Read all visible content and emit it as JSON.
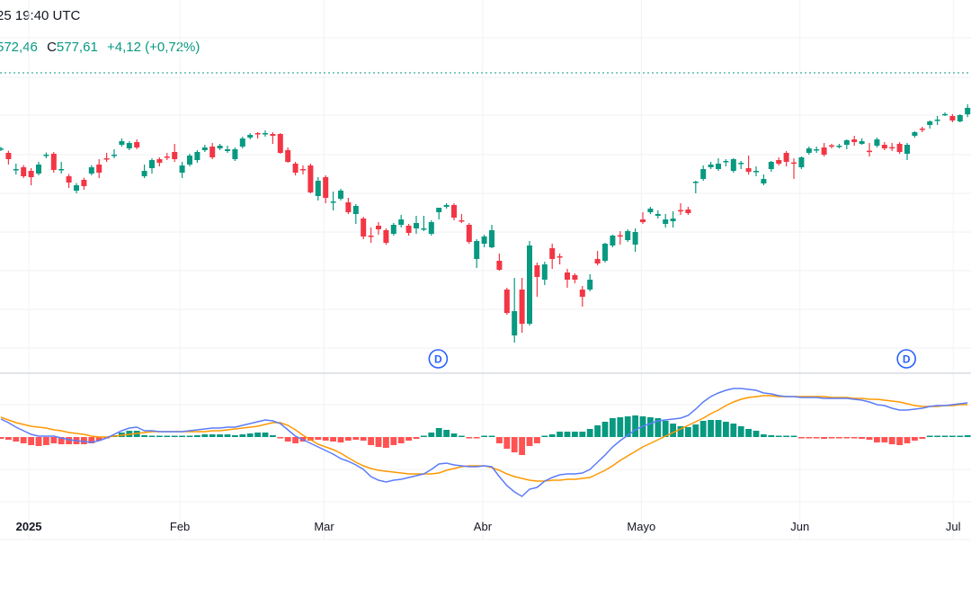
{
  "header": {
    "datetime": "25 19:40 UTC",
    "low_value": "572,46",
    "close_label": "C",
    "close_value": "577,61",
    "change": "+4,12 (+0,72%)"
  },
  "colors": {
    "up": "#089981",
    "down": "#F23645",
    "hist_up": "#089981",
    "hist_down": "#FF5252",
    "macd_line": "#5B7CFA",
    "signal_line": "#FF9800",
    "dividend_marker": "#2962FF",
    "last_price_line": "#089981"
  },
  "dividend_markers": [
    {
      "label": "D"
    },
    {
      "label": "D"
    }
  ],
  "chart_data": [
    {
      "type": "candlestick",
      "title": "",
      "x_ticks": [
        "2025",
        "Feb",
        "Mar",
        "Abr",
        "Mayo",
        "Jun",
        "Jul"
      ],
      "grid": true,
      "last_close": 577.61,
      "candles_ohlc": [
        [
          554.6,
          556.0,
          553.6,
          555.1
        ],
        [
          552.6,
          553.8,
          546.1,
          549.1
        ],
        [
          543.4,
          546.6,
          540.6,
          543.6
        ],
        [
          544.6,
          545.8,
          538.6,
          539.6
        ],
        [
          542.6,
          544.1,
          534.6,
          539.1
        ],
        [
          541.1,
          547.6,
          540.1,
          546.1
        ],
        [
          551.1,
          552.8,
          549.6,
          551.6
        ],
        [
          552.1,
          553.1,
          541.6,
          543.1
        ],
        [
          543.1,
          547.6,
          541.1,
          543.6
        ],
        [
          539.6,
          540.8,
          533.1,
          536.1
        ],
        [
          531.6,
          535.8,
          530.1,
          534.6
        ],
        [
          537.6,
          538.8,
          532.1,
          534.1
        ],
        [
          541.1,
          545.8,
          540.1,
          544.6
        ],
        [
          546.1,
          549.1,
          538.6,
          541.6
        ],
        [
          549.6,
          552.6,
          547.6,
          549.1
        ],
        [
          551.1,
          554.6,
          549.6,
          551.6
        ],
        [
          557.1,
          560.6,
          556.1,
          559.1
        ],
        [
          555.1,
          559.1,
          554.1,
          558.1
        ],
        [
          558.6,
          560.1,
          554.6,
          555.6
        ],
        [
          539.6,
          546.1,
          538.6,
          542.6
        ],
        [
          544.1,
          549.6,
          541.1,
          548.6
        ],
        [
          549.1,
          550.1,
          545.1,
          547.1
        ],
        [
          550.6,
          552.6,
          548.6,
          550.1
        ],
        [
          553.1,
          557.6,
          547.6,
          549.1
        ],
        [
          541.6,
          547.6,
          538.6,
          545.6
        ],
        [
          546.1,
          552.1,
          545.1,
          551.1
        ],
        [
          548.6,
          554.1,
          547.1,
          553.1
        ],
        [
          554.1,
          557.1,
          553.1,
          555.6
        ],
        [
          556.1,
          558.1,
          549.1,
          550.1
        ],
        [
          555.1,
          557.6,
          554.1,
          556.6
        ],
        [
          553.6,
          556.6,
          552.6,
          554.6
        ],
        [
          549.1,
          555.6,
          548.1,
          554.6
        ],
        [
          556.1,
          561.6,
          555.1,
          560.6
        ],
        [
          561.1,
          563.6,
          560.1,
          562.6
        ],
        [
          563.6,
          564.1,
          560.6,
          563.1
        ],
        [
          563.1,
          565.1,
          561.6,
          563.6
        ],
        [
          563.1,
          564.1,
          557.6,
          562.1
        ],
        [
          563.1,
          563.6,
          552.1,
          552.6
        ],
        [
          554.1,
          555.6,
          547.1,
          547.6
        ],
        [
          546.6,
          547.6,
          540.1,
          541.6
        ],
        [
          543.6,
          545.6,
          540.6,
          543.1
        ],
        [
          545.6,
          546.6,
          530.1,
          530.6
        ],
        [
          528.6,
          539.1,
          526.1,
          537.1
        ],
        [
          539.1,
          540.1,
          524.6,
          527.6
        ],
        [
          525.1,
          531.1,
          520.6,
          525.6
        ],
        [
          527.1,
          532.6,
          526.1,
          531.6
        ],
        [
          525.1,
          527.6,
          518.6,
          519.6
        ],
        [
          518.6,
          524.1,
          513.1,
          523.1
        ],
        [
          516.1,
          517.1,
          504.6,
          506.1
        ],
        [
          506.6,
          511.1,
          502.6,
          506.1
        ],
        [
          512.1,
          514.1,
          507.1,
          510.1
        ],
        [
          509.6,
          510.6,
          501.6,
          502.6
        ],
        [
          507.6,
          513.6,
          506.6,
          512.6
        ],
        [
          512.6,
          518.1,
          511.1,
          515.6
        ],
        [
          512.1,
          513.1,
          506.6,
          508.1
        ],
        [
          510.6,
          517.6,
          507.6,
          513.6
        ],
        [
          510.1,
          517.6,
          509.1,
          510.6
        ],
        [
          507.6,
          515.1,
          506.6,
          514.1
        ],
        [
          519.6,
          522.1,
          515.6,
          522.1
        ],
        [
          522.6,
          524.6,
          521.6,
          523.6
        ],
        [
          523.6,
          524.6,
          515.1,
          516.6
        ],
        [
          515.1,
          518.6,
          513.6,
          514.6
        ],
        [
          512.6,
          513.6,
          502.1,
          503.1
        ],
        [
          493.6,
          504.6,
          488.6,
          503.6
        ],
        [
          502.1,
          507.1,
          500.1,
          506.1
        ],
        [
          500.1,
          512.6,
          499.6,
          509.6
        ],
        [
          492.6,
          496.6,
          487.1,
          487.6
        ],
        [
          476.6,
          477.6,
          462.6,
          463.6
        ],
        [
          451.1,
          483.1,
          447.1,
          464.6
        ],
        [
          476.6,
          483.1,
          452.6,
          457.6
        ],
        [
          457.6,
          503.6,
          456.6,
          501.1
        ],
        [
          490.1,
          491.6,
          472.6,
          483.6
        ],
        [
          482.1,
          492.1,
          479.1,
          490.6
        ],
        [
          499.6,
          502.1,
          488.1,
          493.6
        ],
        [
          495.1,
          496.6,
          490.6,
          494.6
        ],
        [
          486.1,
          488.1,
          477.6,
          482.1
        ],
        [
          484.6,
          485.6,
          480.1,
          482.1
        ],
        [
          476.6,
          478.6,
          467.1,
          472.6
        ],
        [
          476.6,
          485.1,
          475.6,
          482.1
        ],
        [
          493.6,
          498.1,
          490.1,
          491.1
        ],
        [
          492.6,
          502.6,
          491.6,
          502.1
        ],
        [
          501.1,
          507.1,
          500.1,
          506.6
        ],
        [
          506.8,
          509.1,
          501.6,
          506.4
        ],
        [
          504.1,
          510.1,
          503.1,
          509.1
        ],
        [
          501.6,
          510.6,
          497.6,
          508.6
        ],
        [
          515.6,
          519.6,
          513.1,
          514.1
        ],
        [
          519.6,
          522.6,
          518.6,
          521.6
        ],
        [
          517.6,
          520.6,
          516.1,
          518.6
        ],
        [
          513.1,
          518.6,
          511.1,
          515.6
        ],
        [
          514.6,
          520.1,
          511.1,
          516.1
        ],
        [
          520.8,
          524.6,
          518.1,
          520.4
        ],
        [
          521.1,
          522.6,
          518.1,
          519.1
        ],
        [
          536.1,
          537.1,
          530.1,
          536.6
        ],
        [
          538.1,
          545.6,
          537.1,
          543.6
        ],
        [
          544.6,
          547.6,
          543.6,
          546.1
        ],
        [
          543.6,
          549.6,
          542.6,
          546.6
        ],
        [
          547.6,
          549.1,
          545.1,
          548.1
        ],
        [
          542.6,
          549.6,
          541.6,
          549.1
        ],
        [
          546.6,
          548.1,
          543.6,
          547.1
        ],
        [
          544.1,
          551.1,
          540.6,
          542.1
        ],
        [
          542.4,
          545.1,
          539.6,
          542.6
        ],
        [
          535.6,
          540.6,
          534.6,
          538.1
        ],
        [
          543.6,
          548.1,
          542.1,
          547.6
        ],
        [
          548.6,
          550.1,
          545.6,
          546.6
        ],
        [
          552.6,
          553.6,
          545.1,
          547.6
        ],
        [
          547.3,
          549.6,
          538.1,
          547.1
        ],
        [
          544.6,
          550.6,
          543.6,
          550.1
        ],
        [
          552.6,
          556.1,
          551.6,
          555.1
        ],
        [
          554.4,
          556.1,
          552.6,
          554.6
        ],
        [
          555.6,
          558.1,
          550.6,
          551.6
        ],
        [
          556.8,
          557.6,
          555.1,
          556.6
        ],
        [
          556.4,
          557.6,
          555.1,
          556.6
        ],
        [
          557.1,
          560.1,
          554.6,
          559.6
        ],
        [
          560.1,
          562.1,
          556.6,
          558.6
        ],
        [
          557.6,
          560.6,
          557.1,
          559.1
        ],
        [
          553.8,
          558.1,
          550.6,
          553.6
        ],
        [
          556.6,
          561.1,
          555.6,
          560.1
        ],
        [
          557.1,
          558.6,
          554.1,
          555.1
        ],
        [
          555.8,
          558.1,
          553.6,
          555.6
        ],
        [
          557.6,
          558.6,
          552.1,
          553.1
        ],
        [
          552.1,
          558.1,
          548.6,
          557.1
        ],
        [
          562.1,
          564.6,
          561.1,
          564.1
        ],
        [
          566.1,
          567.1,
          564.1,
          565.6
        ],
        [
          568.1,
          570.6,
          566.1,
          570.1
        ],
        [
          570.9,
          573.1,
          568.1,
          571.1
        ],
        [
          574.0,
          575.1,
          573.1,
          574.2
        ],
        [
          573.1,
          574.1,
          569.6,
          570.6
        ],
        [
          570.1,
          574.1,
          569.6,
          573.6
        ],
        [
          574.0,
          579.6,
          572.46,
          577.61
        ]
      ]
    },
    {
      "type": "macd",
      "title": "",
      "grid": true,
      "macd": [
        4.0,
        3.2,
        2.2,
        1.4,
        0.6,
        0.2,
        0.2,
        0.2,
        -0.2,
        -0.6,
        -0.8,
        -1.0,
        -1.2,
        -0.8,
        -0.2,
        0.6,
        1.4,
        2.0,
        2.2,
        1.4,
        1.4,
        1.2,
        1.2,
        1.2,
        1.2,
        1.4,
        1.6,
        1.8,
        2.0,
        2.0,
        2.2,
        2.2,
        2.6,
        3.0,
        3.4,
        3.8,
        3.6,
        3.0,
        1.6,
        0.2,
        -0.6,
        -1.4,
        -2.2,
        -3.0,
        -3.8,
        -4.8,
        -5.4,
        -6.2,
        -7.2,
        -8.8,
        -9.6,
        -10.0,
        -9.6,
        -9.4,
        -9.0,
        -8.6,
        -8.2,
        -7.2,
        -6.0,
        -5.8,
        -6.2,
        -6.4,
        -6.6,
        -6.6,
        -6.4,
        -6.6,
        -8.8,
        -10.8,
        -12.2,
        -13.2,
        -11.6,
        -11.2,
        -9.8,
        -9.0,
        -8.4,
        -8.2,
        -8.2,
        -8.0,
        -7.2,
        -5.6,
        -4.0,
        -2.2,
        -0.8,
        0.4,
        1.6,
        2.4,
        3.0,
        3.6,
        3.8,
        4.0,
        4.2,
        4.8,
        6.2,
        7.8,
        9.0,
        9.8,
        10.4,
        10.8,
        10.8,
        10.6,
        10.4,
        9.8,
        9.6,
        9.2,
        9.0,
        9.0,
        8.8,
        8.8,
        8.8,
        8.6,
        8.6,
        8.6,
        8.6,
        8.4,
        8.2,
        7.8,
        7.2,
        7.0,
        6.4,
        6.0,
        6.0,
        6.2,
        6.4,
        6.8,
        7.0,
        7.0,
        7.2,
        7.4,
        7.6
      ],
      "signal": [
        4.4,
        3.8,
        3.2,
        2.8,
        2.4,
        2.2,
        2.0,
        1.6,
        1.4,
        1.0,
        0.8,
        0.6,
        0.2,
        0.0,
        0.0,
        0.2,
        0.4,
        0.6,
        0.8,
        1.0,
        1.2,
        1.2,
        1.2,
        1.2,
        1.2,
        1.2,
        1.2,
        1.2,
        1.4,
        1.4,
        1.6,
        1.8,
        2.0,
        2.2,
        2.4,
        2.8,
        3.2,
        3.2,
        2.6,
        1.6,
        0.4,
        -0.6,
        -1.6,
        -2.2,
        -2.8,
        -3.6,
        -4.6,
        -5.6,
        -6.4,
        -7.0,
        -7.4,
        -7.6,
        -7.8,
        -8.0,
        -8.2,
        -8.2,
        -8.2,
        -8.2,
        -8.0,
        -7.4,
        -7.0,
        -6.6,
        -6.4,
        -6.4,
        -6.4,
        -6.8,
        -7.4,
        -8.2,
        -8.8,
        -9.2,
        -9.6,
        -9.8,
        -9.8,
        -9.6,
        -9.6,
        -9.4,
        -9.4,
        -9.2,
        -9.0,
        -8.2,
        -7.4,
        -6.4,
        -5.2,
        -4.2,
        -3.2,
        -2.2,
        -1.4,
        -0.6,
        0.2,
        1.0,
        1.8,
        2.6,
        3.4,
        4.2,
        5.2,
        6.0,
        7.0,
        7.8,
        8.4,
        8.8,
        9.0,
        9.2,
        9.2,
        9.0,
        9.0,
        9.0,
        9.0,
        9.0,
        9.0,
        9.0,
        8.8,
        8.8,
        8.8,
        8.6,
        8.6,
        8.4,
        8.4,
        8.2,
        8.0,
        7.8,
        7.4,
        7.0,
        6.8,
        6.8,
        6.8,
        7.0,
        7.0,
        7.2,
        7.2
      ]
    }
  ]
}
